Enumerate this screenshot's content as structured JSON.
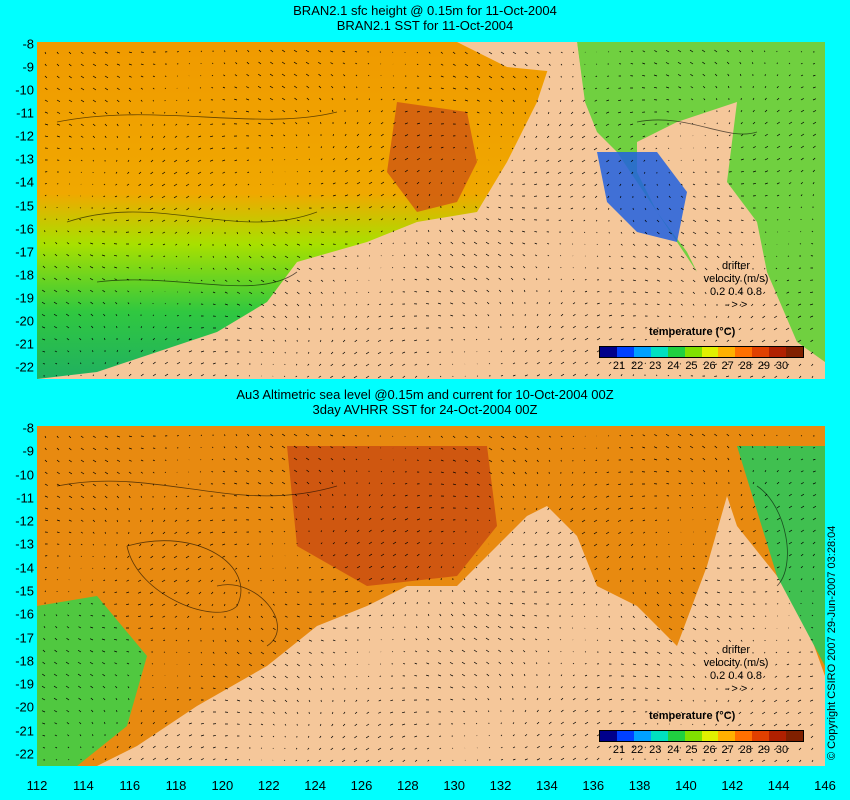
{
  "top": {
    "title_line1": "BRAN2.1 sfc height @ 0.15m for 11-Oct-2004",
    "title_line2": "BRAN2.1 SST for 11-Oct-2004"
  },
  "bottom": {
    "title_line1": "Au3 Altimetric sea level  @0.15m and current for 10-Oct-2004 00Z",
    "title_line2": "3day AVHRR SST for 24-Oct-2004 00Z"
  },
  "y_ticks": [
    "-8",
    "-9",
    "-10",
    "-11",
    "-12",
    "-13",
    "-14",
    "-15",
    "-16",
    "-17",
    "-18",
    "-19",
    "-20",
    "-21",
    "-22"
  ],
  "x_ticks": [
    "112",
    "114",
    "116",
    "118",
    "120",
    "122",
    "124",
    "126",
    "128",
    "130",
    "132",
    "134",
    "136",
    "138",
    "140",
    "142",
    "144",
    "146"
  ],
  "legend": {
    "title": "temperature (°C)",
    "ticks": [
      "21",
      "22",
      "23",
      "24",
      "25",
      "26",
      "27",
      "28",
      "29",
      "30"
    ],
    "colors": [
      "#00008b",
      "#0040ff",
      "#00a0ff",
      "#00e0c0",
      "#20d040",
      "#80e000",
      "#e0f000",
      "#ffb000",
      "#ff7000",
      "#e04000",
      "#b02000",
      "#802000"
    ]
  },
  "drifter": {
    "line1": "drifter",
    "line2": "velocity (m/s)",
    "scale": "0.2  0.4  0.8",
    "arrows": "-    >    >"
  },
  "copyright": "© Copyright CSIRO 2007  29-Jun-2007 03:28:04",
  "colors": {
    "background": "#00ffff",
    "land": "#f5c79a",
    "ocean_warm": "#e06a00",
    "ocean_mid": "#f0a000",
    "ocean_cool": "#40c840"
  }
}
